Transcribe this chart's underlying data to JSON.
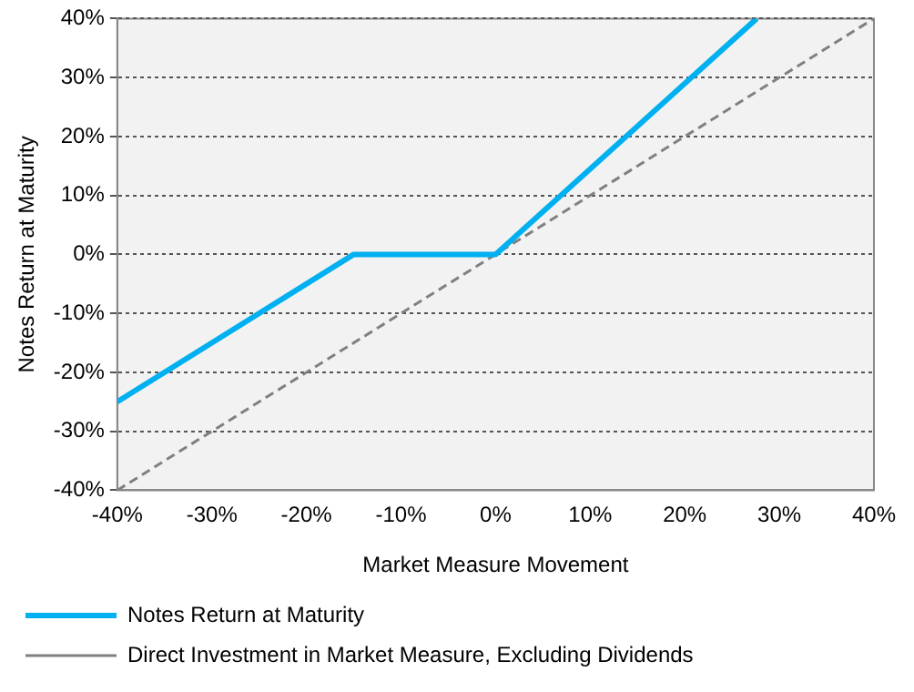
{
  "chart_data": {
    "type": "line",
    "xlabel": "Market Measure Movement",
    "ylabel": "Notes Return at Maturity",
    "xlim": [
      -40,
      40
    ],
    "ylim": [
      -40,
      40
    ],
    "xticks": [
      {
        "value": -40,
        "label": "-40%"
      },
      {
        "value": -30,
        "label": "-30%"
      },
      {
        "value": -20,
        "label": "-20%"
      },
      {
        "value": -10,
        "label": "-10%"
      },
      {
        "value": 0,
        "label": "0%"
      },
      {
        "value": 10,
        "label": "10%"
      },
      {
        "value": 20,
        "label": "20%"
      },
      {
        "value": 30,
        "label": "30%"
      },
      {
        "value": 40,
        "label": "40%"
      }
    ],
    "yticks": [
      {
        "value": -40,
        "label": "-40%"
      },
      {
        "value": -30,
        "label": "-30%"
      },
      {
        "value": -20,
        "label": "-20%"
      },
      {
        "value": -10,
        "label": "-10%"
      },
      {
        "value": 0,
        "label": "0%"
      },
      {
        "value": 10,
        "label": "10%"
      },
      {
        "value": 20,
        "label": "20%"
      },
      {
        "value": 30,
        "label": "30%"
      },
      {
        "value": 40,
        "label": "40%"
      }
    ],
    "grid": "y",
    "legend": "bottom",
    "marker": "none",
    "series": [
      {
        "name": "Notes Return at Maturity",
        "color": "#00b0f0",
        "x": [
          -40,
          -15,
          0,
          27.6
        ],
        "values": [
          -25,
          0,
          0,
          40
        ],
        "line_style": "solid"
      },
      {
        "name": "Direct Investment in Market Measure, Excluding Dividends",
        "color": "#808080",
        "x": [
          -40,
          40
        ],
        "values": [
          -40,
          40
        ],
        "line_style": "dashed"
      }
    ]
  }
}
